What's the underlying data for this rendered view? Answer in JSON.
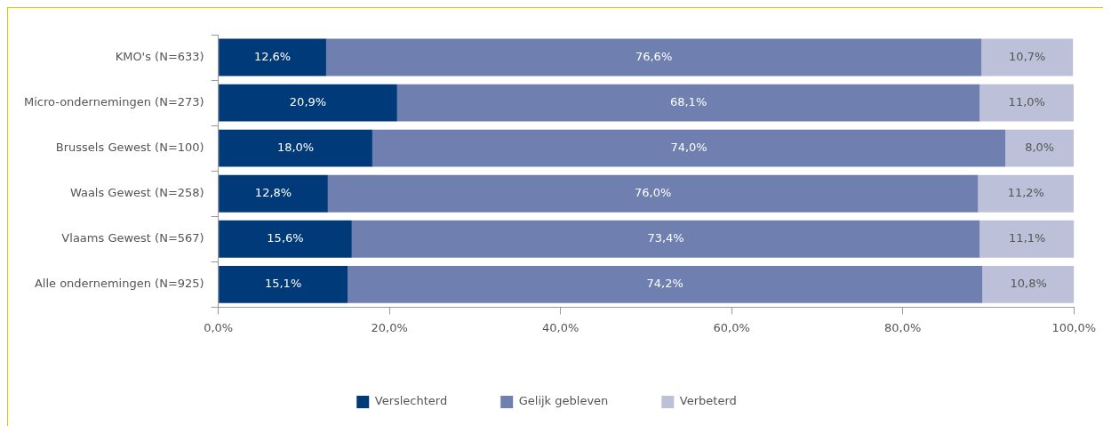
{
  "chart_data": {
    "type": "bar",
    "orientation": "horizontal",
    "stacked": true,
    "categories": [
      "KMO's (N=633)",
      "Micro-ondernemingen (N=273)",
      "Brussels Gewest (N=100)",
      "Waals Gewest (N=258)",
      "Vlaams Gewest (N=567)",
      "Alle ondernemingen (N=925)"
    ],
    "series": [
      {
        "name": "Verslechterd",
        "color": "#003a78",
        "values": [
          12.6,
          20.9,
          18.0,
          12.8,
          15.6,
          15.1
        ],
        "value_labels": [
          "12,6%",
          "20,9%",
          "18,0%",
          "12,8%",
          "15,6%",
          "15,1%"
        ]
      },
      {
        "name": "Gelijk gebleven",
        "color": "#6f7fb0",
        "values": [
          76.6,
          68.1,
          74.0,
          76.0,
          73.4,
          74.2
        ],
        "value_labels": [
          "76,6%",
          "68,1%",
          "74,0%",
          "76,0%",
          "73,4%",
          "74,2%"
        ]
      },
      {
        "name": "Verbeterd",
        "color": "#bcc1d9",
        "values": [
          10.7,
          11.0,
          8.0,
          11.2,
          11.1,
          10.8
        ],
        "value_labels": [
          "10,7%",
          "11,0%",
          "8,0%",
          "11,2%",
          "11,1%",
          "10,8%"
        ]
      }
    ],
    "xlim": [
      0,
      100
    ],
    "xticks": [
      {
        "value": 0,
        "label": "0,0%"
      },
      {
        "value": 20,
        "label": "20,0%"
      },
      {
        "value": 40,
        "label": "40,0%"
      },
      {
        "value": 60,
        "label": "60,0%"
      },
      {
        "value": 80,
        "label": "80,0%"
      },
      {
        "value": 100,
        "label": "100,0%"
      }
    ],
    "grid": false,
    "legend": "bottom"
  }
}
